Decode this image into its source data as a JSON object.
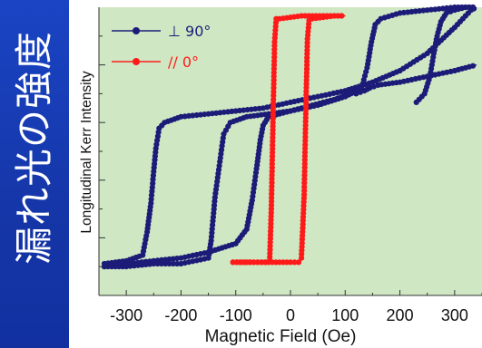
{
  "side_caption": "漏れ光の強度",
  "colors": {
    "side_band": "#1536a8",
    "plot_background": "#cfe8c3",
    "series_perpendicular": "#1c1c78",
    "series_parallel": "#ff1a1a"
  },
  "chart_data": {
    "type": "line",
    "title": "",
    "xlabel": "Magnetic Field    (Oe)",
    "ylabel": "Longitudinal Kerr Intensity",
    "xlim": [
      -350,
      350
    ],
    "ylim": [
      0,
      10
    ],
    "x_ticks": [
      -300,
      -200,
      -100,
      0,
      100,
      200,
      300
    ],
    "x_tick_labels": [
      "-300",
      "-200",
      "-100",
      "0",
      "100",
      "200",
      "300"
    ],
    "y_tick_labels_shown": false,
    "grid": false,
    "legend_position": "top-left",
    "series": [
      {
        "name": "⊥ 90°",
        "color": "#1c1c78",
        "branches": [
          {
            "x": [
              -340,
              -300,
              -270,
              -262,
              -255,
              -250,
              -246,
              -240,
              -230,
              -200,
              -150,
              -100,
              -50,
              0,
              50,
              100,
              150,
              200,
              250,
              300,
              330,
              340
            ],
            "y": [
              1.1,
              1.2,
              1.4,
              2.2,
              3.2,
              4.3,
              5.1,
              5.8,
              6.0,
              6.2,
              6.3,
              6.4,
              6.5,
              6.7,
              6.9,
              7.1,
              7.4,
              7.8,
              8.4,
              9.3,
              9.9,
              10.0
            ]
          },
          {
            "x": [
              -340,
              -300,
              -250,
              -200,
              -150,
              -100,
              -80,
              -70,
              -62,
              -55,
              -50,
              -40,
              0,
              50,
              100,
              130,
              140,
              148,
              155,
              165,
              200,
              250,
              300,
              340
            ],
            "y": [
              1.0,
              1.1,
              1.2,
              1.3,
              1.5,
              1.8,
              2.3,
              3.3,
              4.4,
              5.4,
              5.9,
              6.2,
              6.4,
              6.6,
              6.9,
              7.2,
              7.9,
              8.8,
              9.4,
              9.6,
              9.8,
              9.9,
              10.0,
              10.0
            ]
          },
          {
            "x": [
              -340,
              -300,
              -250,
              -200,
              -150,
              -145,
              -138,
              -130,
              -122,
              -110,
              -80,
              -40,
              0,
              40,
              80,
              110,
              120,
              135,
              145,
              160,
              200,
              250,
              300,
              340
            ],
            "y": [
              1.0,
              1.0,
              1.1,
              1.1,
              1.3,
              1.9,
              3.4,
              4.5,
              5.6,
              6.0,
              6.2,
              6.3,
              6.4,
              6.6,
              6.8,
              7.0,
              7.0,
              7.1,
              7.2,
              7.3,
              7.4,
              7.6,
              7.8,
              8.0
            ]
          },
          {
            "x": [
              230,
              245,
              255,
              262,
              268,
              275,
              285,
              300,
              320,
              340
            ],
            "y": [
              6.7,
              7.0,
              7.6,
              8.4,
              9.0,
              9.5,
              9.8,
              9.9,
              10.0,
              10.0
            ]
          }
        ]
      },
      {
        "name": "// 0°",
        "color": "#ff1a1a",
        "branches": [
          {
            "x": [
              -105,
              -90,
              -75,
              -60,
              -45,
              -38,
              -35,
              -32,
              -29,
              -26,
              -20,
              0,
              20,
              40,
              60,
              80,
              100
            ],
            "y": [
              1.15,
              1.15,
              1.15,
              1.15,
              1.15,
              1.2,
              3.0,
              6.0,
              8.8,
              9.6,
              9.6,
              9.65,
              9.7,
              9.7,
              9.7,
              9.7,
              9.7
            ]
          },
          {
            "x": [
              -105,
              -80,
              -60,
              -40,
              -20,
              0,
              15,
              20,
              25,
              28,
              31,
              34,
              40,
              60,
              80,
              100
            ],
            "y": [
              1.15,
              1.15,
              1.15,
              1.15,
              1.15,
              1.15,
              1.15,
              1.3,
              3.5,
              6.3,
              8.9,
              9.55,
              9.6,
              9.65,
              9.7,
              9.7
            ]
          }
        ]
      }
    ]
  }
}
